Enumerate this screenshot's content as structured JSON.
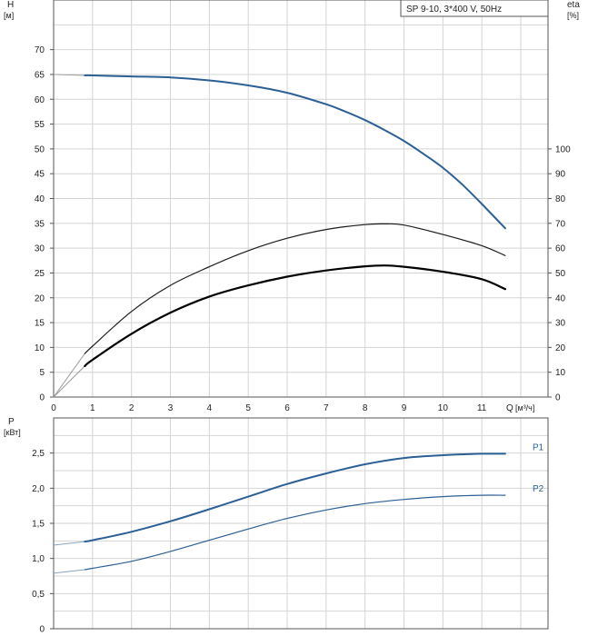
{
  "header": {
    "model_label": "SP 9-10, 3*400 V, 50Hz"
  },
  "chart_data": [
    {
      "type": "line",
      "title": "",
      "xlabel": "Q",
      "xunit": "[м³/ч]",
      "ylabel": "H",
      "yunit": "[м]",
      "y2label": "eta",
      "y2unit": "[%]",
      "xlim": [
        0,
        12.7
      ],
      "ylim": [
        0,
        80
      ],
      "y2lim": [
        0,
        160
      ],
      "x_ticks": [
        0,
        1,
        2,
        3,
        4,
        5,
        6,
        7,
        8,
        9,
        10,
        11
      ],
      "y_ticks": [
        0,
        5,
        10,
        15,
        20,
        25,
        30,
        35,
        40,
        45,
        50,
        55,
        60,
        65,
        70
      ],
      "y2_ticks": [
        0,
        10,
        20,
        30,
        40,
        50,
        60,
        70,
        80,
        90,
        100
      ],
      "grid": true,
      "series": [
        {
          "color": "#2b5f96",
          "axis": "left",
          "width": 2,
          "x": [
            0.8,
            1,
            2,
            3,
            4,
            5,
            6,
            7,
            7.5,
            8,
            8.5,
            9,
            9.5,
            10,
            10.5,
            11,
            11.6
          ],
          "y": [
            64.8,
            64.8,
            64.6,
            64.4,
            63.8,
            62.8,
            61.3,
            59.0,
            57.5,
            55.8,
            53.8,
            51.6,
            49.0,
            46.2,
            42.8,
            38.9,
            34.0
          ]
        },
        {
          "color": "#1a1a1a",
          "axis": "right",
          "width": 1.2,
          "x": [
            0.8,
            1,
            2,
            3,
            4,
            5,
            6,
            7,
            8,
            8.5,
            9,
            10,
            11,
            11.6
          ],
          "y": [
            17.5,
            20.5,
            34.5,
            45.0,
            52.5,
            59.0,
            64.0,
            67.5,
            69.5,
            69.8,
            69.3,
            65.5,
            61.0,
            57.0
          ]
        },
        {
          "color": "#000000",
          "axis": "right",
          "width": 2.2,
          "x": [
            0.8,
            1,
            2,
            3,
            4,
            5,
            6,
            7,
            8,
            8.5,
            9,
            10,
            11,
            11.6
          ],
          "y": [
            12.5,
            15.0,
            25.5,
            34.0,
            40.5,
            45.0,
            48.5,
            51.0,
            52.7,
            53.0,
            52.5,
            50.5,
            47.5,
            43.5
          ]
        }
      ],
      "lowflow_guides": [
        {
          "axis": "right",
          "x": [
            0,
            0.8
          ],
          "y": [
            0,
            17.5
          ]
        },
        {
          "axis": "right",
          "x": [
            0,
            0.8
          ],
          "y": [
            0,
            12.5
          ]
        },
        {
          "axis": "left",
          "x": [
            0,
            0.8
          ],
          "y": [
            65.0,
            64.8
          ]
        }
      ]
    },
    {
      "type": "line",
      "title": "",
      "ylabel": "P",
      "yunit": "[кВт]",
      "xlim": [
        0,
        12.7
      ],
      "ylim": [
        0,
        3.0
      ],
      "y_ticks": [
        0,
        0.5,
        1.0,
        1.5,
        2.0,
        2.5
      ],
      "y_tick_labels": [
        "0",
        "0,5",
        "1,0",
        "1,5",
        "2,0",
        "2,5"
      ],
      "grid": true,
      "series": [
        {
          "name": "P1",
          "color": "#2b5f96",
          "width": 2,
          "x": [
            0.8,
            1,
            2,
            3,
            4,
            5,
            6,
            7,
            8,
            9,
            10,
            11,
            11.6
          ],
          "y": [
            1.24,
            1.26,
            1.38,
            1.53,
            1.7,
            1.88,
            2.06,
            2.21,
            2.34,
            2.43,
            2.47,
            2.49,
            2.49
          ]
        },
        {
          "name": "P2",
          "color": "#2b5f96",
          "width": 1.2,
          "x": [
            0.8,
            1,
            2,
            3,
            4,
            5,
            6,
            7,
            8,
            9,
            10,
            11,
            11.6
          ],
          "y": [
            0.84,
            0.86,
            0.96,
            1.1,
            1.26,
            1.42,
            1.57,
            1.69,
            1.78,
            1.84,
            1.88,
            1.9,
            1.9
          ]
        }
      ],
      "lowflow_guides": [
        {
          "x": [
            0,
            0.8
          ],
          "y": [
            1.19,
            1.24
          ]
        },
        {
          "x": [
            0,
            0.8
          ],
          "y": [
            0.79,
            0.84
          ]
        }
      ]
    }
  ]
}
